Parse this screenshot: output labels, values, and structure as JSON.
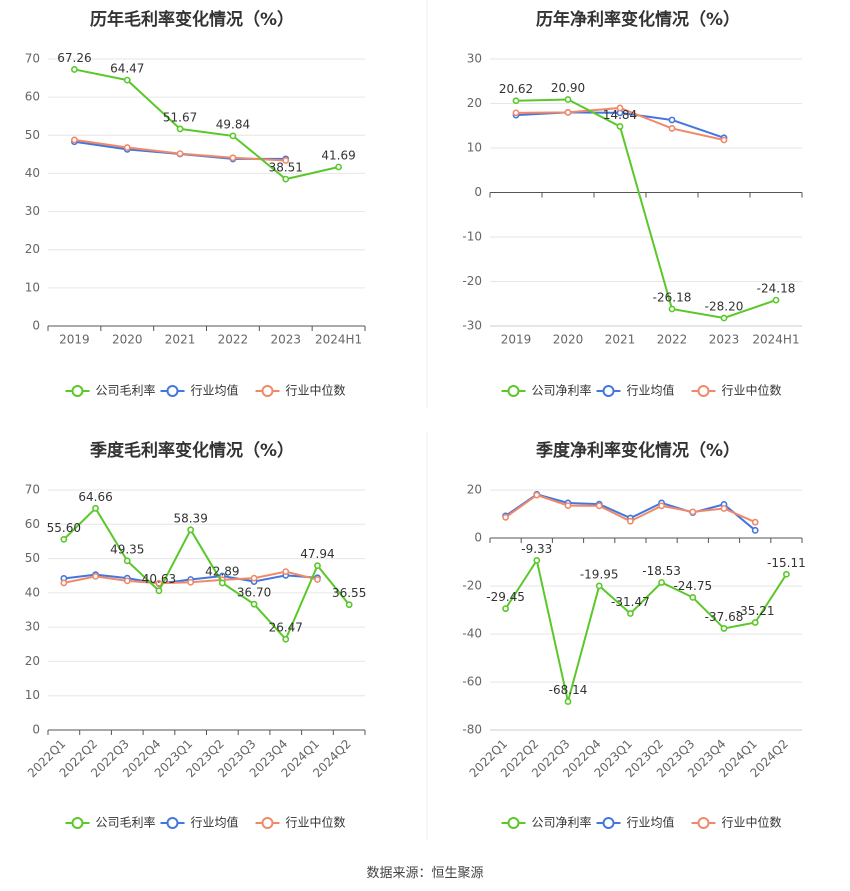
{
  "footer": "数据来源：恒生聚源",
  "colors": {
    "company": "#5ac82a",
    "industry_avg": "#4477dd",
    "industry_median": "#f0896a"
  },
  "chart_data": [
    {
      "type": "line",
      "title": "历年毛利率变化情况（%）",
      "categories": [
        "2019",
        "2020",
        "2021",
        "2022",
        "2023",
        "2024H1"
      ],
      "ylim": [
        0,
        70
      ],
      "yticks": [
        0,
        10,
        20,
        30,
        40,
        50,
        60,
        70
      ],
      "grid": true,
      "legend_position": "bottom",
      "series": [
        {
          "name": "公司毛利率",
          "key": "company",
          "values": [
            67.26,
            64.47,
            51.67,
            49.84,
            38.51,
            41.69
          ],
          "labels": [
            "67.26",
            "64.47",
            "51.67",
            "49.84",
            "38.51",
            "41.69"
          ]
        },
        {
          "name": "行业均值",
          "key": "industry_avg",
          "values": [
            48.3,
            46.3,
            45.1,
            43.8,
            43.8,
            null
          ]
        },
        {
          "name": "行业中位数",
          "key": "industry_median",
          "values": [
            48.8,
            46.8,
            45.2,
            44.1,
            43.4,
            null
          ]
        }
      ]
    },
    {
      "type": "line",
      "title": "历年净利率变化情况（%）",
      "categories": [
        "2019",
        "2020",
        "2021",
        "2022",
        "2023",
        "2024H1"
      ],
      "ylim": [
        -30,
        30
      ],
      "yticks": [
        -30,
        -20,
        -10,
        0,
        10,
        20,
        30
      ],
      "grid": true,
      "legend_position": "bottom",
      "series": [
        {
          "name": "公司净利率",
          "key": "company",
          "values": [
            20.62,
            20.9,
            14.84,
            -26.18,
            -28.2,
            -24.18
          ],
          "labels": [
            "20.62",
            "20.90",
            "14.84",
            "-26.18",
            "-28.20",
            "-24.18"
          ]
        },
        {
          "name": "行业均值",
          "key": "industry_avg",
          "values": [
            17.4,
            18.0,
            17.9,
            16.3,
            12.3,
            null
          ]
        },
        {
          "name": "行业中位数",
          "key": "industry_median",
          "values": [
            17.9,
            18.0,
            19.0,
            14.4,
            11.8,
            null
          ]
        }
      ]
    },
    {
      "type": "line",
      "title": "季度毛利率变化情况（%）",
      "categories": [
        "2022Q1",
        "2022Q2",
        "2022Q3",
        "2022Q4",
        "2023Q1",
        "2023Q2",
        "2023Q3",
        "2023Q4",
        "2024Q1",
        "2024Q2"
      ],
      "ylim": [
        0,
        70
      ],
      "yticks": [
        0,
        10,
        20,
        30,
        40,
        50,
        60,
        70
      ],
      "grid": true,
      "legend_position": "bottom",
      "series": [
        {
          "name": "公司毛利率",
          "key": "company",
          "values": [
            55.6,
            64.66,
            49.35,
            40.63,
            58.39,
            42.89,
            36.7,
            26.47,
            47.94,
            36.55
          ],
          "labels": [
            "55.60",
            "64.66",
            "49.35",
            "40.63",
            "58.39",
            "42.89",
            "36.70",
            "26.47",
            "47.94",
            "36.55"
          ]
        },
        {
          "name": "行业均值",
          "key": "industry_avg",
          "values": [
            44.2,
            45.3,
            44.3,
            42.7,
            43.9,
            44.9,
            43.3,
            45.1,
            44.4,
            null
          ]
        },
        {
          "name": "行业中位数",
          "key": "industry_median",
          "values": [
            42.9,
            44.8,
            43.5,
            42.8,
            43.1,
            43.8,
            44.3,
            46.2,
            43.9,
            null
          ]
        }
      ]
    },
    {
      "type": "line",
      "title": "季度净利率变化情况（%）",
      "categories": [
        "2022Q1",
        "2022Q2",
        "2022Q3",
        "2022Q4",
        "2023Q1",
        "2023Q2",
        "2023Q3",
        "2023Q4",
        "2024Q1",
        "2024Q2"
      ],
      "ylim": [
        -80,
        20
      ],
      "yticks": [
        -80,
        -60,
        -40,
        -20,
        0,
        20
      ],
      "grid": true,
      "legend_position": "bottom",
      "series": [
        {
          "name": "公司净利率",
          "key": "company",
          "values": [
            -29.45,
            -9.33,
            -68.14,
            -19.95,
            -31.47,
            -18.53,
            -24.75,
            -37.68,
            -35.21,
            -15.11
          ],
          "labels": [
            "-29.45",
            "-9.33",
            "-68.14",
            "-19.95",
            "-31.47",
            "-18.53",
            "-24.75",
            "-37.68",
            "-35.21",
            "-15.11"
          ]
        },
        {
          "name": "行业均值",
          "key": "industry_avg",
          "values": [
            9.2,
            18.2,
            14.6,
            14.1,
            8.3,
            14.6,
            10.6,
            14.0,
            3.2,
            null
          ]
        },
        {
          "name": "行业中位数",
          "key": "industry_median",
          "values": [
            8.6,
            17.9,
            13.5,
            13.4,
            7.0,
            13.4,
            10.9,
            12.3,
            6.6,
            null
          ]
        }
      ]
    }
  ]
}
